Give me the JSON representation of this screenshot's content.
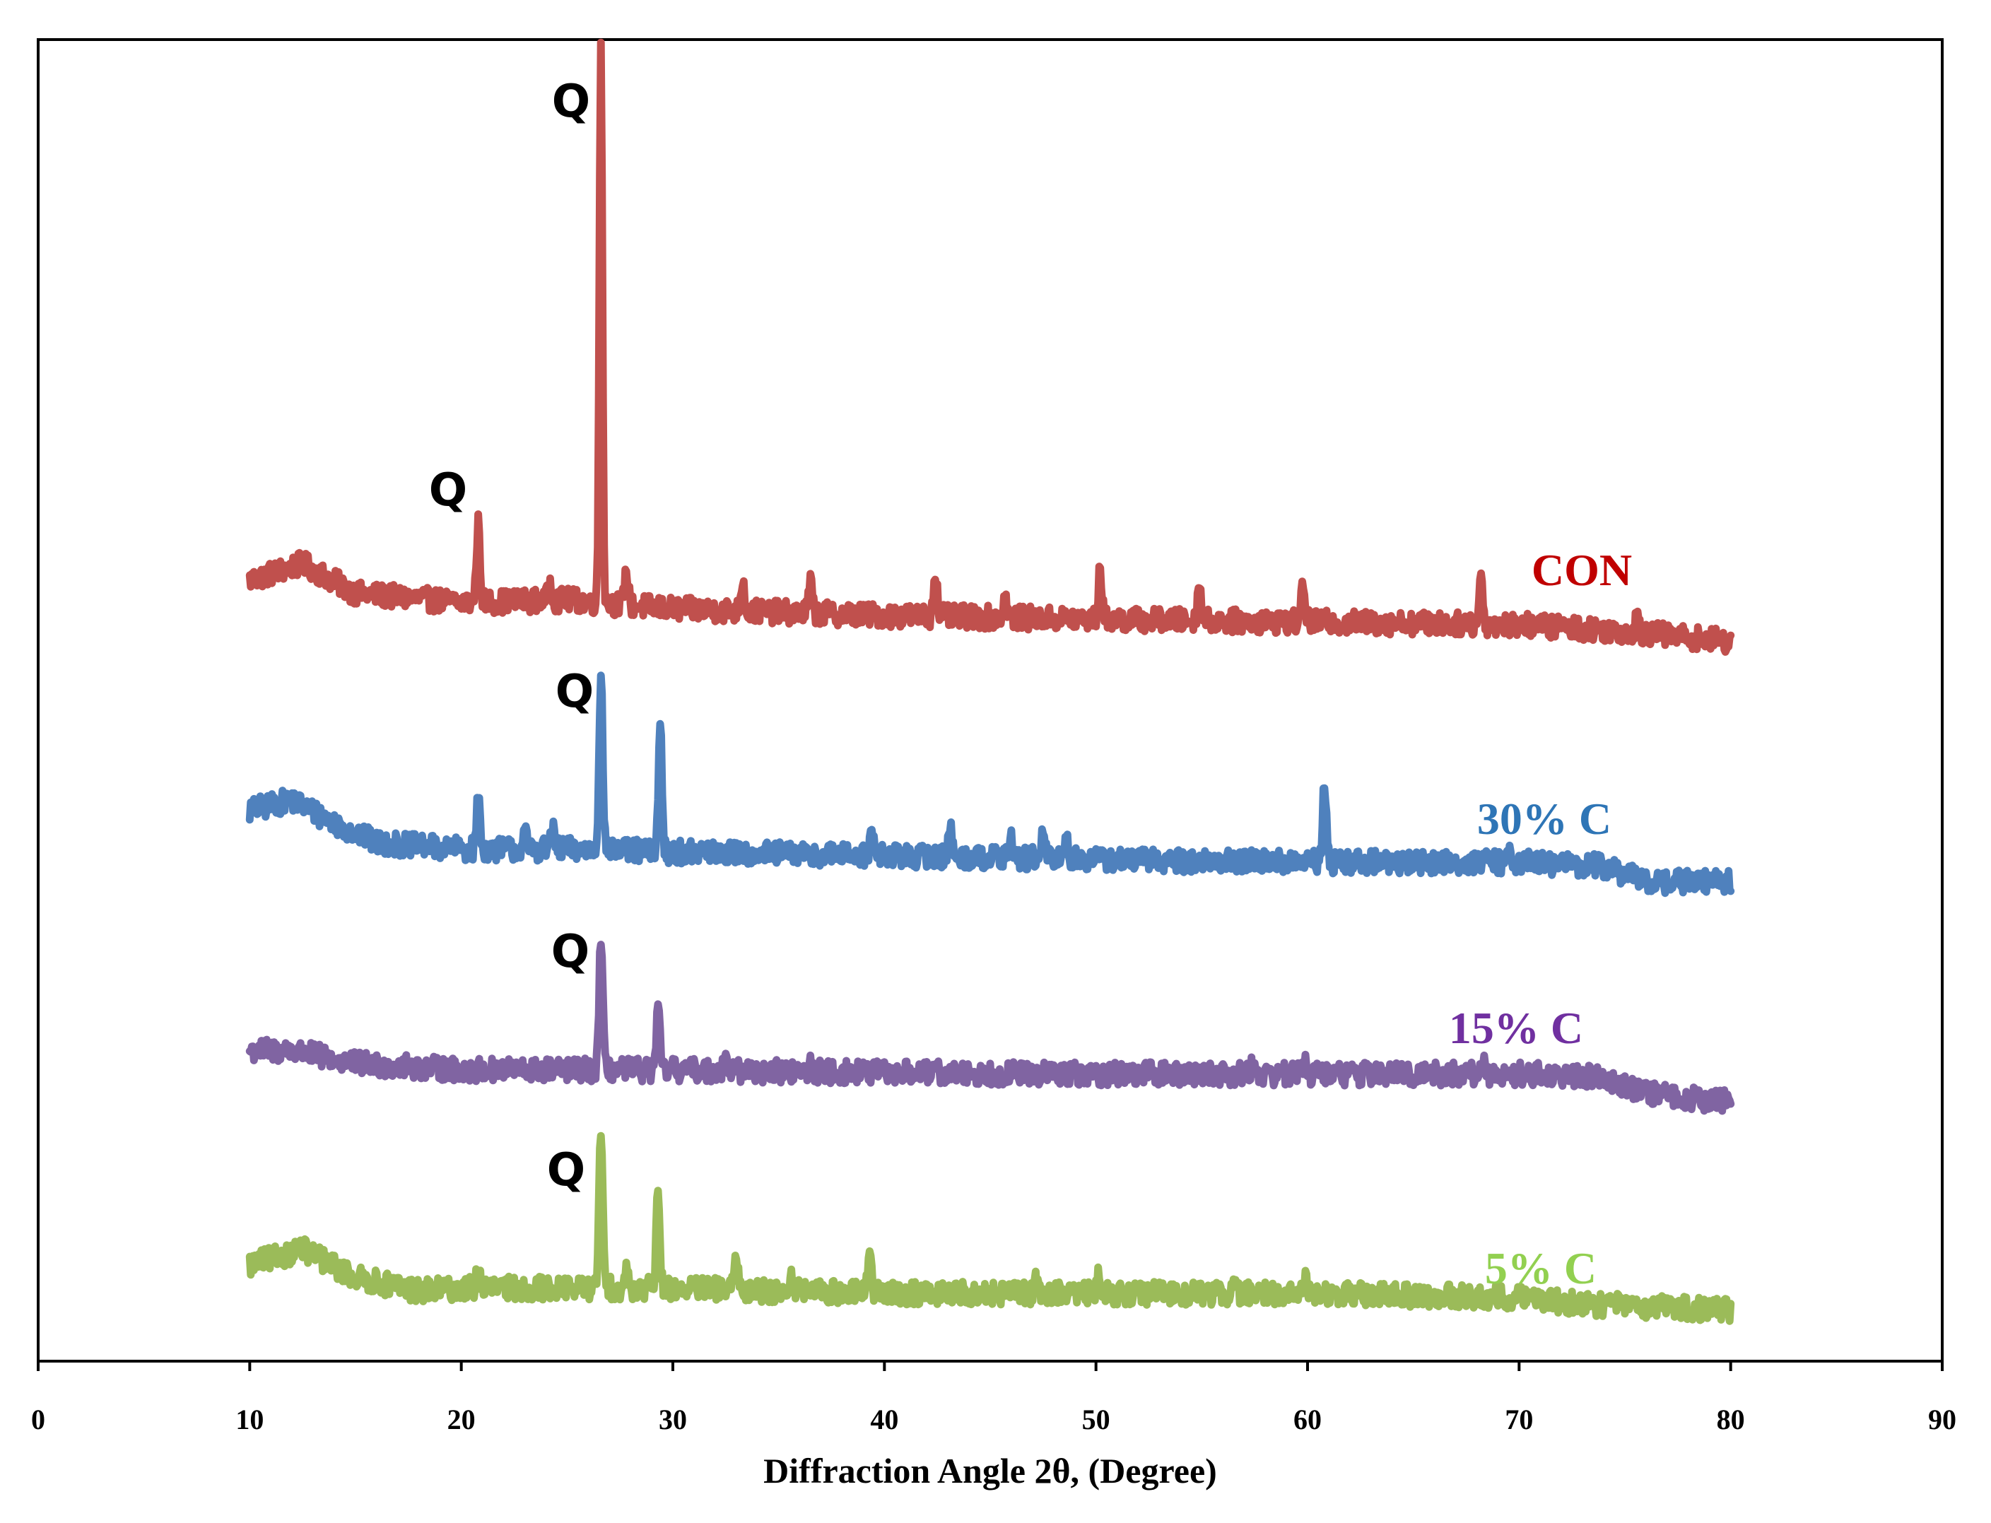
{
  "chart_data": {
    "type": "line",
    "title": "",
    "xlabel": "Diffraction Angle 2θ, (Degree)",
    "ylabel": "",
    "xlim": [
      0,
      90
    ],
    "ylim": [
      0,
      1000
    ],
    "x_ticks": [
      0,
      10,
      20,
      30,
      40,
      50,
      60,
      70,
      80,
      90
    ],
    "x_tick_labels": [
      "0",
      "10",
      "20",
      "30",
      "40",
      "50",
      "60",
      "70",
      "80",
      "90"
    ],
    "grid": false,
    "legend": "none (series labelled inline at right)",
    "series": [
      {
        "name": "CON",
        "color": "#C0504D",
        "label_color": "#C00000",
        "x_range": [
          10,
          80
        ],
        "baseline_profile": [
          [
            10,
            587
          ],
          [
            12.5,
            600
          ],
          [
            15,
            577
          ],
          [
            20,
            570
          ],
          [
            25,
            572
          ],
          [
            30,
            565
          ],
          [
            40,
            560
          ],
          [
            50,
            557
          ],
          [
            60,
            555
          ],
          [
            70,
            553
          ],
          [
            75,
            548
          ],
          [
            80,
            540
          ]
        ],
        "peaks": [
          [
            20.8,
            630
          ],
          [
            24.2,
            585
          ],
          [
            26.6,
            1000
          ],
          [
            27.8,
            595
          ],
          [
            33.3,
            588
          ],
          [
            36.5,
            585
          ],
          [
            42.4,
            595
          ],
          [
            45.7,
            575
          ],
          [
            50.2,
            595
          ],
          [
            54.9,
            585
          ],
          [
            59.8,
            585
          ],
          [
            68.2,
            590
          ],
          [
            75.6,
            560
          ]
        ]
      },
      {
        "name": "30% C",
        "color": "#4F81BD",
        "label_color": "#2E75B6",
        "x_range": [
          10,
          80
        ],
        "baseline_profile": [
          [
            10,
            410
          ],
          [
            12,
            418
          ],
          [
            14,
            400
          ],
          [
            16,
            385
          ],
          [
            20,
            380
          ],
          [
            25,
            380
          ],
          [
            30,
            378
          ],
          [
            40,
            375
          ],
          [
            50,
            372
          ],
          [
            60,
            370
          ],
          [
            70,
            370
          ],
          [
            74,
            367
          ],
          [
            76,
            355
          ],
          [
            80,
            355
          ]
        ],
        "peaks": [
          [
            20.8,
            420
          ],
          [
            23.0,
            392
          ],
          [
            24.3,
            395
          ],
          [
            26.6,
            515
          ],
          [
            29.4,
            475
          ],
          [
            39.4,
            393
          ],
          [
            43.1,
            398
          ],
          [
            46.0,
            390
          ],
          [
            47.5,
            392
          ],
          [
            48.6,
            390
          ],
          [
            60.8,
            430
          ],
          [
            69.6,
            378
          ]
        ]
      },
      {
        "name": "15% C",
        "color": "#8064A2",
        "label_color": "#7030A0",
        "x_range": [
          10,
          80
        ],
        "baseline_profile": [
          [
            10,
            225
          ],
          [
            12,
            225
          ],
          [
            15,
            215
          ],
          [
            20,
            210
          ],
          [
            25,
            210
          ],
          [
            30,
            210
          ],
          [
            40,
            208
          ],
          [
            50,
            207
          ],
          [
            60,
            207
          ],
          [
            70,
            207
          ],
          [
            74,
            205
          ],
          [
            76,
            192
          ],
          [
            80,
            185
          ]
        ],
        "peaks": [
          [
            26.6,
            310
          ],
          [
            29.3,
            255
          ],
          [
            32.5,
            220
          ],
          [
            36.5,
            215
          ],
          [
            57.4,
            215
          ],
          [
            59.9,
            220
          ],
          [
            68.3,
            215
          ]
        ]
      },
      {
        "name": "5% C",
        "color": "#9BBB59",
        "label_color": "#92D050",
        "x_range": [
          10,
          80
        ],
        "baseline_profile": [
          [
            10,
            60
          ],
          [
            12.5,
            72
          ],
          [
            15,
            50
          ],
          [
            18,
            40
          ],
          [
            20,
            42
          ],
          [
            25,
            42
          ],
          [
            30,
            42
          ],
          [
            40,
            38
          ],
          [
            50,
            38
          ],
          [
            60,
            38
          ],
          [
            70,
            35
          ],
          [
            73,
            30
          ],
          [
            80,
            25
          ]
        ],
        "peaks": [
          [
            20.8,
            58
          ],
          [
            26.6,
            165
          ],
          [
            27.8,
            55
          ],
          [
            29.3,
            115
          ],
          [
            33.0,
            65
          ],
          [
            35.6,
            52
          ],
          [
            39.3,
            75
          ],
          [
            47.2,
            48
          ],
          [
            50.1,
            50
          ],
          [
            56.5,
            48
          ],
          [
            59.9,
            50
          ]
        ]
      }
    ],
    "annotations": [
      {
        "text": "Q",
        "series": "CON",
        "x": 26.6
      },
      {
        "text": "Q",
        "series": "CON",
        "x": 20.8
      },
      {
        "text": "Q",
        "series": "30% C",
        "x": 26.6
      },
      {
        "text": "Q",
        "series": "15% C",
        "x": 26.6
      },
      {
        "text": "Q",
        "series": "5% C",
        "x": 26.6
      }
    ]
  }
}
